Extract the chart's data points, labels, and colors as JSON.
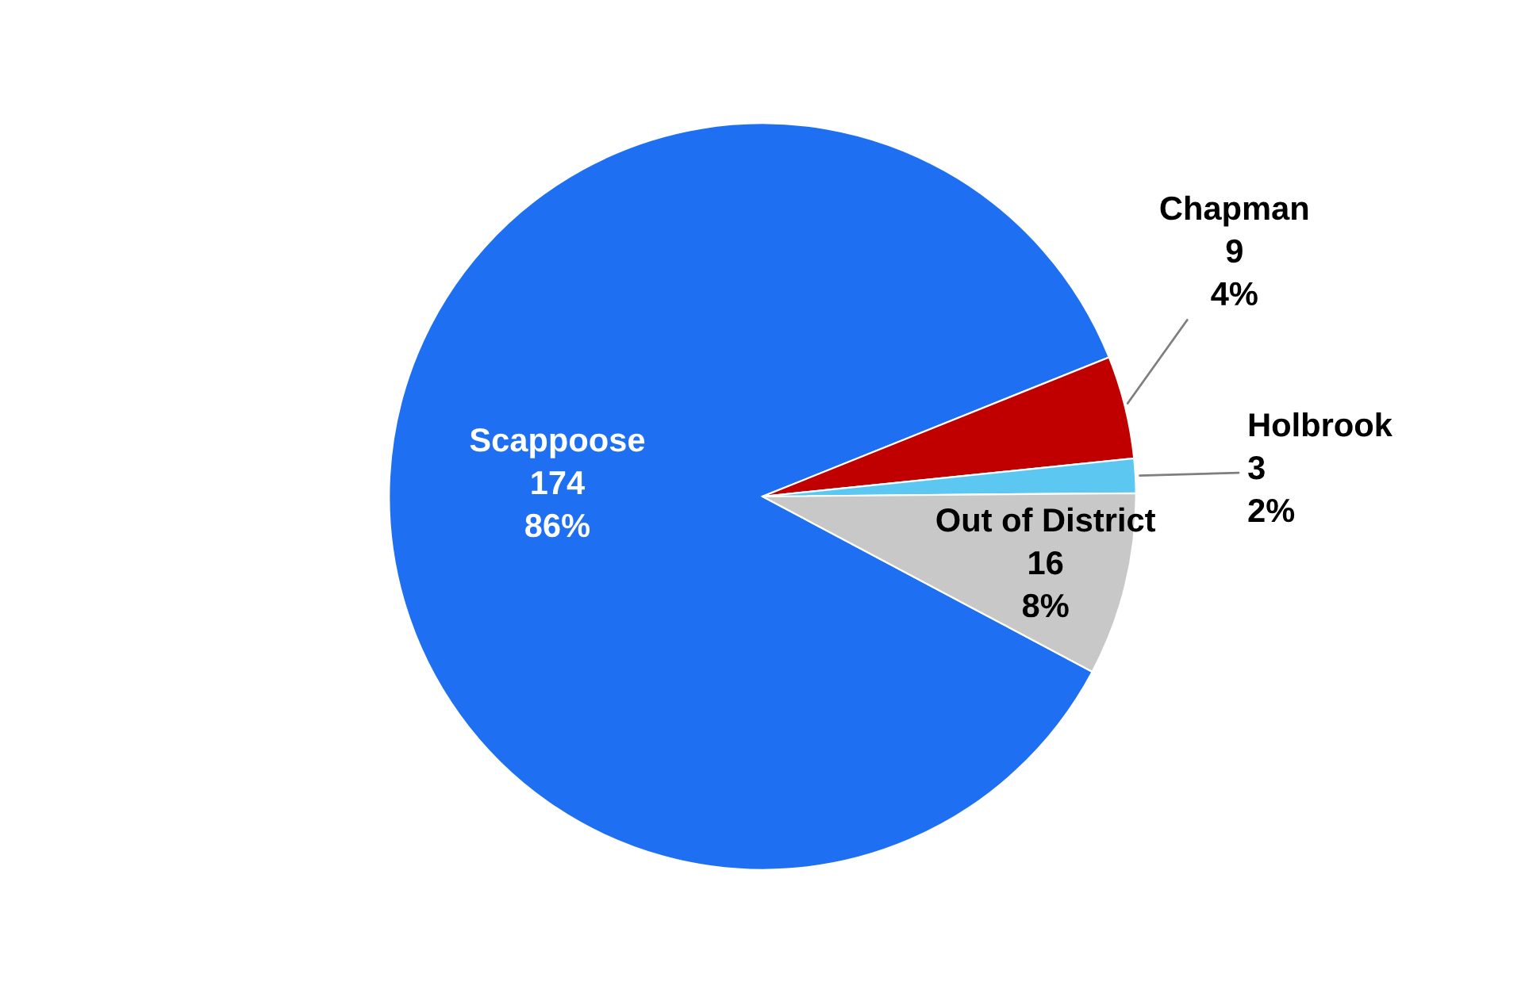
{
  "chart_data": {
    "type": "pie",
    "categories": [
      "Scappoose",
      "Chapman",
      "Holbrook",
      "Out of District"
    ],
    "values": [
      174,
      9,
      3,
      16
    ],
    "value_labels": [
      "174\n86%",
      "9\n4%",
      "3\n2%",
      "16\n8%"
    ],
    "colors": [
      "#1f6ff2",
      "#c00000",
      "#5cc8f2",
      "#c8c8c8"
    ],
    "legend": false
  }
}
